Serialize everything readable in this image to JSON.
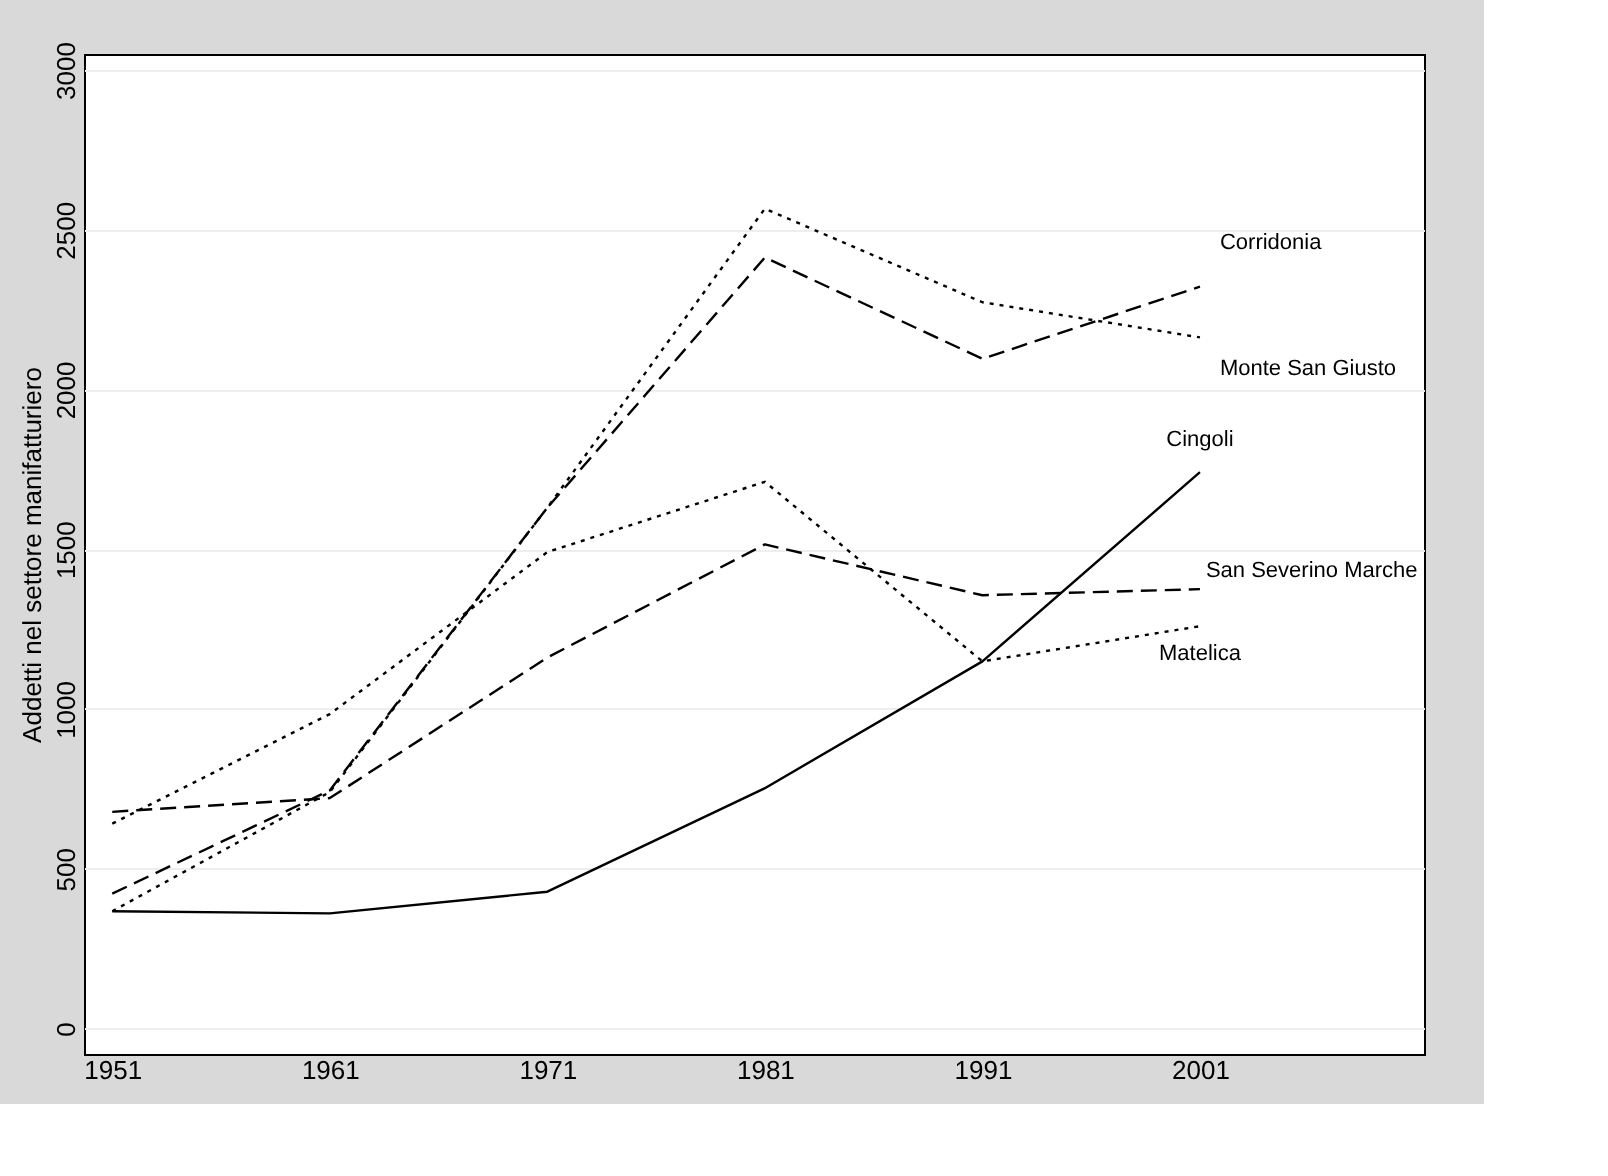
{
  "chart_data": {
    "type": "line",
    "ylabel": "Addetti nel settore manifatturiero",
    "x": [
      1951,
      1961,
      1971,
      1981,
      1991,
      2001
    ],
    "series": [
      {
        "name": "Corridonia",
        "color": "#000000",
        "line_style": "dashed",
        "values": [
          422,
          745,
          1630,
          2413,
          2096,
          2322
        ]
      },
      {
        "name": "Monte San Giusto",
        "color": "#000000",
        "line_style": "dotted",
        "values": [
          367,
          740,
          1630,
          2566,
          2273,
          2163
        ]
      },
      {
        "name": "Cingoli",
        "color": "#000000",
        "line_style": "solid",
        "values": [
          367,
          360,
          428,
          752,
          1149,
          1741
        ]
      },
      {
        "name": "San Severino Marche",
        "color": "#000000",
        "line_style": "dashed",
        "values": [
          678,
          721,
          1161,
          1515,
          1356,
          1375
        ]
      },
      {
        "name": "Matelica",
        "color": "#000000",
        "line_style": "dotted",
        "values": [
          641,
          984,
          1491,
          1711,
          1149,
          1259
        ]
      }
    ],
    "xlim": [
      1949.7,
      2011.3
    ],
    "xticks": [
      1951,
      1961,
      1971,
      1981,
      1991,
      2001
    ],
    "ylim": [
      -80,
      3050
    ],
    "yticks": [
      0,
      500,
      1000,
      1500,
      2000,
      2500,
      3000
    ],
    "grid": "y"
  }
}
